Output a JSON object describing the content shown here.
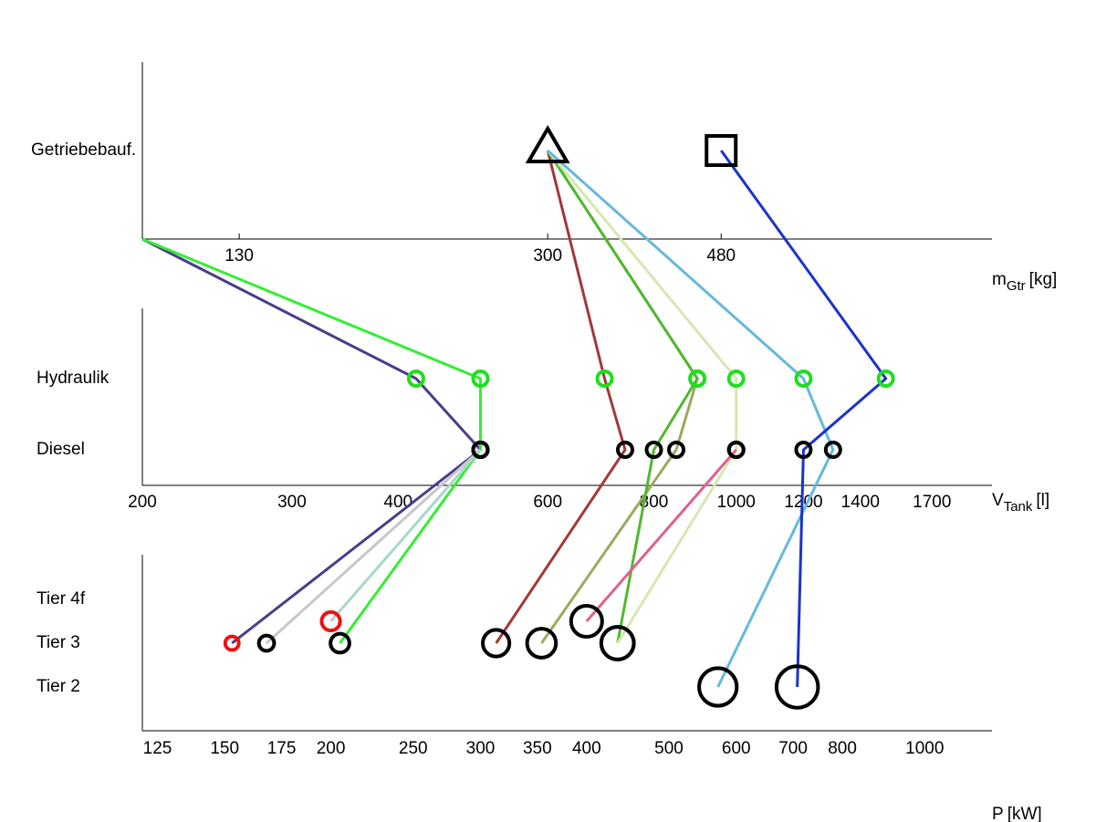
{
  "chart_data": {
    "type": "parallel",
    "panels": [
      {
        "levels": [
          "Getriebebauf."
        ],
        "log": true,
        "xlim": [
          100,
          1000
        ],
        "xticks": [
          130,
          300,
          480
        ],
        "label": "m",
        "label_sub": "Gtr",
        "label_unit": "[kg]",
        "markers": [
          {
            "x": 300,
            "shape": "triangle"
          },
          {
            "x": 480,
            "shape": "square"
          }
        ]
      },
      {
        "levels": [
          "Hydraulik",
          "Diesel"
        ],
        "log": true,
        "xlim": [
          200,
          2000
        ],
        "xticks": [
          200,
          300,
          400,
          600,
          800,
          1000,
          1200,
          1400,
          1700
        ],
        "label": "V",
        "label_sub": "Tank",
        "label_unit": "[l]",
        "level_colors": [
          "#22dd22",
          "#000000"
        ]
      },
      {
        "levels": [
          "Tier 4f",
          null,
          "Tier 3",
          null,
          "Tier 2"
        ],
        "log": true,
        "xlim": [
          120,
          1200
        ],
        "xticks": [
          125,
          150,
          175,
          200,
          250,
          300,
          350,
          400,
          500,
          600,
          700,
          800,
          1000
        ],
        "label": "P",
        "label_unit": "[kW]"
      }
    ],
    "series": [
      {
        "color": "#483d8b",
        "marker_color": "#ee1111",
        "gear": null,
        "hydraulik": 420,
        "diesel": 500,
        "power": 153,
        "tier": 2
      },
      {
        "color": "#33ee33",
        "marker_color": "#000000",
        "gear": null,
        "hydraulik": 500,
        "diesel": 500,
        "power": 205,
        "tier": 2
      },
      {
        "color": "#c8c8c8",
        "marker_color": "#000000",
        "gear": null,
        "hydraulik": null,
        "diesel": 500,
        "power": 168,
        "tier": 2
      },
      {
        "color": "#a8d8c8",
        "marker_color": "#ee1111",
        "gear": null,
        "hydraulik": null,
        "diesel": 500,
        "power": 200,
        "tier": 1
      },
      {
        "color": "#a03838",
        "marker_color": "#000000",
        "gear": 300,
        "hydraulik": 700,
        "diesel": 740,
        "power": 313,
        "tier": 2
      },
      {
        "color": "#9aaa60",
        "marker_color": "#000000",
        "gear": 300,
        "hydraulik": 900,
        "diesel": 850,
        "power": 354,
        "tier": 2
      },
      {
        "color": "#50b830",
        "marker_color": "#000000",
        "gear": 300,
        "hydraulik": 900,
        "diesel": 800,
        "power": 435,
        "tier": 2
      },
      {
        "color": "#d4e8b0",
        "marker_color": "#000000",
        "gear": 300,
        "hydraulik": 1000,
        "diesel": 1000,
        "power": 435,
        "tier": 2
      },
      {
        "color": "#e06090",
        "marker_color": "#000000",
        "gear": null,
        "hydraulik": null,
        "diesel": 1000,
        "power": 400,
        "tier": 1
      },
      {
        "color": "#66b8dd",
        "marker_color": "#000000",
        "gear": 300,
        "hydraulik": 1200,
        "diesel": 1300,
        "power": 571,
        "tier": 4
      },
      {
        "color": "#1a33cc",
        "marker_color": "#000000",
        "gear": 480,
        "hydraulik": 1500,
        "diesel": 1200,
        "power": 708,
        "tier": 4
      }
    ]
  }
}
